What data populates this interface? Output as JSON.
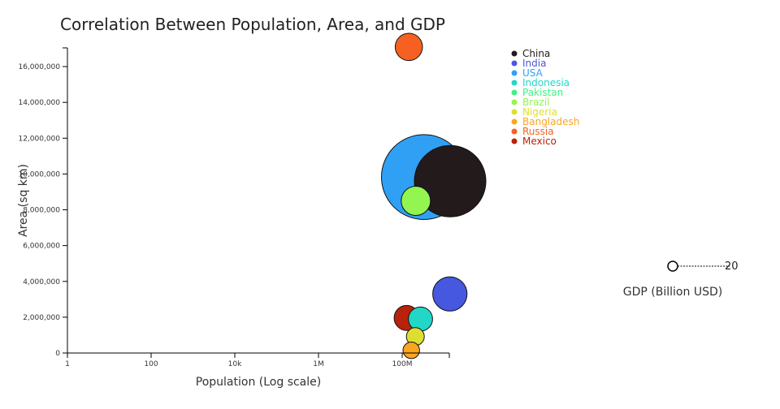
{
  "chart_data": {
    "type": "scatter",
    "title": "Correlation Between Population, Area, and GDP",
    "xlabel": "Population (Log scale)",
    "ylabel": "Area (sq km)",
    "xscale": "log",
    "xlim": [
      1,
      1400000000
    ],
    "ylim": [
      0,
      17100000
    ],
    "x_ticks": [
      {
        "value": 1,
        "label": "1"
      },
      {
        "value": 100,
        "label": "100"
      },
      {
        "value": 10000,
        "label": "10k"
      },
      {
        "value": 1000000,
        "label": "1M"
      },
      {
        "value": 100000000,
        "label": "100M"
      }
    ],
    "y_ticks": [
      {
        "value": 0,
        "label": "0"
      },
      {
        "value": 2000000,
        "label": "2,000,000"
      },
      {
        "value": 4000000,
        "label": "4,000,000"
      },
      {
        "value": 6000000,
        "label": "6,000,000"
      },
      {
        "value": 8000000,
        "label": "8,000,000"
      },
      {
        "value": 10000000,
        "label": "10,000,000"
      },
      {
        "value": 12000000,
        "label": "12,000,000"
      },
      {
        "value": 14000000,
        "label": "14,000,000"
      },
      {
        "value": 16000000,
        "label": "16,000,000"
      }
    ],
    "grid": false,
    "legend_position": "top-right",
    "size_legend": {
      "title": "GDP (Billion USD)",
      "value_label": "20"
    },
    "series": [
      {
        "name": "China",
        "color": "#231a1c",
        "population": 1400000000,
        "area": 9600000,
        "gdp": 14700
      },
      {
        "name": "India",
        "color": "#4658e0",
        "population": 1380000000,
        "area": 3300000,
        "gdp": 2700
      },
      {
        "name": "USA",
        "color": "#30a0f5",
        "population": 331000000,
        "area": 9830000,
        "gdp": 21400
      },
      {
        "name": "Indonesia",
        "color": "#22d6c8",
        "population": 273000000,
        "area": 1900000,
        "gdp": 1100
      },
      {
        "name": "Pakistan",
        "color": "#40f088",
        "population": null,
        "area": null,
        "gdp": null
      },
      {
        "name": "Brazil",
        "color": "#92f550",
        "population": 212000000,
        "area": 8500000,
        "gdp": 1800
      },
      {
        "name": "Nigeria",
        "color": "#dcdf32",
        "population": 206000000,
        "area": 920000,
        "gdp": 450
      },
      {
        "name": "Bangladesh",
        "color": "#fba521",
        "population": 165000000,
        "area": 150000,
        "gdp": 350
      },
      {
        "name": "Russia",
        "color": "#f66020",
        "population": 144000000,
        "area": 17100000,
        "gdp": 1500
      },
      {
        "name": "Mexico",
        "color": "#b8220a",
        "population": 128000000,
        "area": 1960000,
        "gdp": 1200
      }
    ]
  }
}
